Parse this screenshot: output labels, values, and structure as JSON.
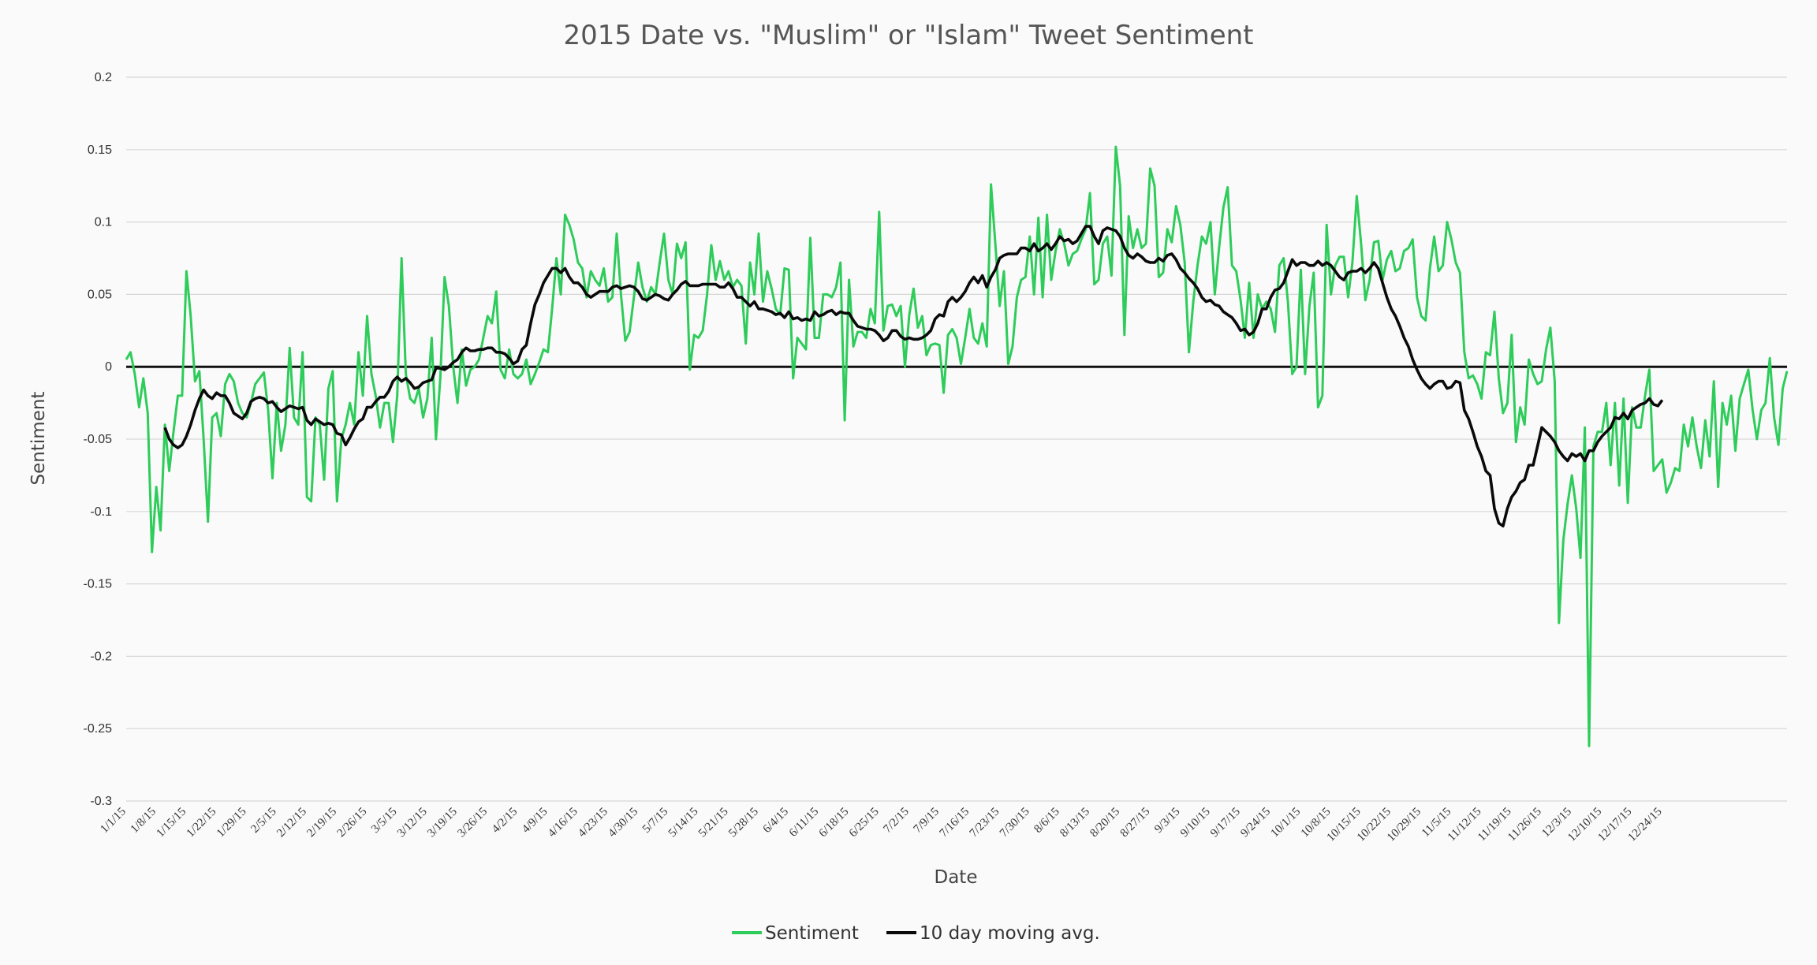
{
  "chart_data": {
    "type": "line",
    "title": "2015 Date vs. \"Muslim\" or \"Islam\" Tweet Sentiment",
    "xlabel": "Date",
    "ylabel": "Sentiment",
    "ylim": [
      -0.3,
      0.2
    ],
    "yticks": [
      "0.2",
      "0.15",
      "0.1",
      "0.05",
      "0",
      "-0.05",
      "-0.1",
      "-0.15",
      "-0.2",
      "-0.25",
      "-0.3"
    ],
    "ytick_values": [
      0.2,
      0.15,
      0.1,
      0.05,
      0,
      -0.05,
      -0.1,
      -0.15,
      -0.2,
      -0.25,
      -0.3
    ],
    "x_start": "1/1/15",
    "x_end": "12/31/15",
    "xticks": [
      "1/1/15",
      "1/8/15",
      "1/15/15",
      "1/22/15",
      "1/29/15",
      "2/5/15",
      "2/12/15",
      "2/19/15",
      "2/26/15",
      "3/5/15",
      "3/12/15",
      "3/19/15",
      "3/26/15",
      "4/2/15",
      "4/9/15",
      "4/16/15",
      "4/23/15",
      "4/30/15",
      "5/7/15",
      "5/14/15",
      "5/21/15",
      "5/28/15",
      "6/4/15",
      "6/11/15",
      "6/18/15",
      "6/25/15",
      "7/2/15",
      "7/9/15",
      "7/16/15",
      "7/23/15",
      "7/30/15",
      "8/6/15",
      "8/13/15",
      "8/20/15",
      "8/27/15",
      "9/3/15",
      "9/10/15",
      "9/17/15",
      "9/24/15",
      "10/1/15",
      "10/8/15",
      "10/15/15",
      "10/22/15",
      "10/29/15",
      "11/5/15",
      "11/12/15",
      "11/19/15",
      "11/26/15",
      "12/3/15",
      "12/10/15",
      "12/17/15",
      "12/24/15"
    ],
    "grid": true,
    "legend_position": "bottom-center",
    "series": [
      {
        "name": "Sentiment",
        "color": "#2ecc5a",
        "values": [
          0.005,
          0.01,
          -0.005,
          -0.028,
          -0.008,
          -0.032,
          -0.128,
          -0.083,
          -0.113,
          -0.04,
          -0.072,
          -0.045,
          -0.02,
          -0.02,
          0.066,
          0.035,
          -0.01,
          -0.003,
          -0.05,
          -0.107,
          -0.035,
          -0.032,
          -0.048,
          -0.012,
          -0.005,
          -0.01,
          -0.025,
          -0.032,
          -0.035,
          -0.025,
          -0.012,
          -0.008,
          -0.004,
          -0.03,
          -0.077,
          -0.025,
          -0.058,
          -0.04,
          0.013,
          -0.035,
          -0.04,
          0.01,
          -0.09,
          -0.093,
          -0.035,
          -0.04,
          -0.078,
          -0.015,
          -0.003,
          -0.093,
          -0.05,
          -0.04,
          -0.025,
          -0.04,
          0.01,
          -0.02,
          0.035,
          -0.005,
          -0.02,
          -0.042,
          -0.025,
          -0.025,
          -0.052,
          -0.02,
          0.075,
          -0.005,
          -0.022,
          -0.025,
          -0.015,
          -0.035,
          -0.022,
          0.02,
          -0.05,
          -0.008,
          0.062,
          0.042,
          0.0,
          -0.025,
          0.012,
          -0.013,
          -0.002,
          0.0,
          0.005,
          0.02,
          0.035,
          0.03,
          0.052,
          -0.002,
          -0.008,
          0.012,
          -0.005,
          -0.008,
          -0.005,
          0.005,
          -0.012,
          -0.005,
          0.003,
          0.012,
          0.01,
          0.04,
          0.075,
          0.05,
          0.105,
          0.098,
          0.088,
          0.072,
          0.068,
          0.048,
          0.066,
          0.06,
          0.056,
          0.068,
          0.045,
          0.048,
          0.092,
          0.05,
          0.018,
          0.024,
          0.048,
          0.072,
          0.055,
          0.045,
          0.055,
          0.05,
          0.072,
          0.092,
          0.06,
          0.05,
          0.085,
          0.075,
          0.086,
          -0.002,
          0.022,
          0.02,
          0.025,
          0.05,
          0.084,
          0.06,
          0.073,
          0.06,
          0.066,
          0.055,
          0.06,
          0.056,
          0.016,
          0.072,
          0.05,
          0.092,
          0.045,
          0.066,
          0.054,
          0.04,
          0.036,
          0.068,
          0.067,
          -0.008,
          0.02,
          0.016,
          0.012,
          0.089,
          0.02,
          0.02,
          0.05,
          0.05,
          0.048,
          0.055,
          0.072,
          -0.037,
          0.06,
          0.014,
          0.024,
          0.024,
          0.02,
          0.04,
          0.03,
          0.107,
          0.025,
          0.042,
          0.043,
          0.035,
          0.042,
          0.0,
          0.036,
          0.054,
          0.027,
          0.035,
          0.008,
          0.015,
          0.016,
          0.015,
          -0.018,
          0.022,
          0.026,
          0.02,
          0.002,
          0.02,
          0.04,
          0.02,
          0.016,
          0.03,
          0.014,
          0.126,
          0.085,
          0.042,
          0.066,
          0.002,
          0.014,
          0.048,
          0.06,
          0.062,
          0.09,
          0.05,
          0.103,
          0.048,
          0.105,
          0.06,
          0.08,
          0.095,
          0.085,
          0.07,
          0.078,
          0.08,
          0.088,
          0.095,
          0.12,
          0.057,
          0.06,
          0.085,
          0.09,
          0.063,
          0.152,
          0.125,
          0.022,
          0.104,
          0.082,
          0.095,
          0.082,
          0.085,
          0.137,
          0.125,
          0.062,
          0.065,
          0.095,
          0.086,
          0.111,
          0.098,
          0.072,
          0.01,
          0.045,
          0.07,
          0.09,
          0.085,
          0.1,
          0.05,
          0.082,
          0.11,
          0.124,
          0.07,
          0.066,
          0.046,
          0.02,
          0.058,
          0.02,
          0.05,
          0.04,
          0.045,
          0.04,
          0.024,
          0.07,
          0.075,
          0.045,
          -0.005,
          0.0,
          0.067,
          -0.005,
          0.042,
          0.065,
          -0.028,
          -0.02,
          0.098,
          0.05,
          0.07,
          0.076,
          0.076,
          0.048,
          0.072,
          0.118,
          0.085,
          0.046,
          0.06,
          0.086,
          0.087,
          0.06,
          0.074,
          0.08,
          0.066,
          0.068,
          0.08,
          0.082,
          0.088,
          0.048,
          0.035,
          0.032,
          0.068,
          0.09,
          0.066,
          0.07,
          0.1,
          0.088,
          0.072,
          0.065,
          0.01,
          -0.008,
          -0.006,
          -0.012,
          -0.022,
          0.01,
          0.008,
          0.038,
          -0.008,
          -0.032,
          -0.025,
          0.022,
          -0.052,
          -0.028,
          -0.04,
          0.005,
          -0.005,
          -0.012,
          -0.01,
          0.012,
          0.027,
          -0.01,
          -0.177,
          -0.12,
          -0.095,
          -0.075,
          -0.098,
          -0.132,
          -0.042,
          -0.262,
          -0.055,
          -0.045,
          -0.045,
          -0.025,
          -0.068,
          -0.025,
          -0.082,
          -0.022,
          -0.094,
          -0.028,
          -0.042,
          -0.042,
          -0.02,
          -0.002,
          -0.072,
          -0.068,
          -0.064,
          -0.087,
          -0.08,
          -0.07,
          -0.072,
          -0.04,
          -0.055,
          -0.035,
          -0.055,
          -0.07,
          -0.037,
          -0.062,
          -0.01,
          -0.083,
          -0.025,
          -0.04,
          -0.02,
          -0.058,
          -0.022,
          -0.012,
          -0.002,
          -0.03,
          -0.05,
          -0.03,
          -0.025,
          0.006,
          -0.035,
          -0.054,
          -0.015,
          -0.003
        ]
      },
      {
        "name": "10 day moving avg.",
        "color": "#0a0a0a",
        "start_index": 9,
        "values": [
          -0.042,
          -0.05,
          -0.054,
          -0.056,
          -0.054,
          -0.048,
          -0.04,
          -0.03,
          -0.022,
          -0.016,
          -0.02,
          -0.022,
          -0.018,
          -0.02,
          -0.02,
          -0.025,
          -0.032,
          -0.034,
          -0.036,
          -0.032,
          -0.024,
          -0.022,
          -0.021,
          -0.022,
          -0.025,
          -0.024,
          -0.028,
          -0.031,
          -0.029,
          -0.027,
          -0.028,
          -0.029,
          -0.028,
          -0.037,
          -0.04,
          -0.036,
          -0.038,
          -0.04,
          -0.039,
          -0.04,
          -0.046,
          -0.047,
          -0.054,
          -0.049,
          -0.043,
          -0.038,
          -0.036,
          -0.028,
          -0.028,
          -0.024,
          -0.021,
          -0.021,
          -0.017,
          -0.01,
          -0.007,
          -0.01,
          -0.008,
          -0.011,
          -0.015,
          -0.014,
          -0.011,
          -0.01,
          -0.009,
          -0.001,
          -0.001,
          -0.002,
          0.0,
          0.003,
          0.005,
          0.01,
          0.013,
          0.011,
          0.011,
          0.012,
          0.012,
          0.013,
          0.013,
          0.01,
          0.01,
          0.009,
          0.006,
          0.002,
          0.004,
          0.012,
          0.015,
          0.03,
          0.043,
          0.05,
          0.058,
          0.063,
          0.068,
          0.068,
          0.065,
          0.068,
          0.062,
          0.058,
          0.058,
          0.055,
          0.05,
          0.048,
          0.05,
          0.052,
          0.052,
          0.052,
          0.055,
          0.056,
          0.054,
          0.055,
          0.056,
          0.055,
          0.052,
          0.047,
          0.046,
          0.048,
          0.05,
          0.049,
          0.047,
          0.046,
          0.05,
          0.053,
          0.057,
          0.059,
          0.056,
          0.056,
          0.056,
          0.057,
          0.057,
          0.057,
          0.057,
          0.055,
          0.055,
          0.058,
          0.054,
          0.048,
          0.048,
          0.045,
          0.042,
          0.045,
          0.04,
          0.04,
          0.039,
          0.038,
          0.036,
          0.037,
          0.034,
          0.038,
          0.033,
          0.034,
          0.032,
          0.033,
          0.032,
          0.038,
          0.035,
          0.036,
          0.038,
          0.039,
          0.036,
          0.038,
          0.037,
          0.037,
          0.032,
          0.028,
          0.027,
          0.026,
          0.026,
          0.025,
          0.022,
          0.018,
          0.02,
          0.025,
          0.025,
          0.021,
          0.019,
          0.02,
          0.019,
          0.019,
          0.02,
          0.022,
          0.025,
          0.033,
          0.036,
          0.035,
          0.045,
          0.048,
          0.045,
          0.048,
          0.052,
          0.058,
          0.062,
          0.058,
          0.063,
          0.055,
          0.062,
          0.067,
          0.075,
          0.077,
          0.078,
          0.078,
          0.078,
          0.082,
          0.082,
          0.08,
          0.085,
          0.08,
          0.082,
          0.085,
          0.081,
          0.085,
          0.09,
          0.087,
          0.088,
          0.085,
          0.087,
          0.092,
          0.097,
          0.097,
          0.09,
          0.085,
          0.094,
          0.096,
          0.095,
          0.094,
          0.09,
          0.082,
          0.077,
          0.075,
          0.078,
          0.076,
          0.073,
          0.072,
          0.072,
          0.075,
          0.073,
          0.077,
          0.078,
          0.074,
          0.068,
          0.065,
          0.061,
          0.058,
          0.054,
          0.048,
          0.045,
          0.046,
          0.043,
          0.042,
          0.038,
          0.036,
          0.034,
          0.03,
          0.025,
          0.026,
          0.022,
          0.024,
          0.03,
          0.04,
          0.04,
          0.048,
          0.053,
          0.054,
          0.058,
          0.066,
          0.074,
          0.07,
          0.072,
          0.072,
          0.07,
          0.07,
          0.073,
          0.07,
          0.072,
          0.07,
          0.066,
          0.062,
          0.06,
          0.065,
          0.066,
          0.066,
          0.068,
          0.065,
          0.068,
          0.072,
          0.068,
          0.058,
          0.048,
          0.04,
          0.035,
          0.028,
          0.02,
          0.014,
          0.005,
          -0.002,
          -0.008,
          -0.012,
          -0.015,
          -0.012,
          -0.01,
          -0.01,
          -0.015,
          -0.014,
          -0.01,
          -0.011,
          -0.03,
          -0.036,
          -0.045,
          -0.055,
          -0.062,
          -0.072,
          -0.075,
          -0.098,
          -0.108,
          -0.11,
          -0.098,
          -0.09,
          -0.086,
          -0.08,
          -0.078,
          -0.068,
          -0.068,
          -0.055,
          -0.042,
          -0.045,
          -0.048,
          -0.052,
          -0.058,
          -0.062,
          -0.065,
          -0.06,
          -0.062,
          -0.06,
          -0.065,
          -0.058,
          -0.058,
          -0.052,
          -0.048,
          -0.045,
          -0.042,
          -0.035,
          -0.036,
          -0.032,
          -0.036,
          -0.03,
          -0.028,
          -0.026,
          -0.025,
          -0.022,
          -0.026,
          -0.027,
          -0.023
        ]
      }
    ]
  }
}
